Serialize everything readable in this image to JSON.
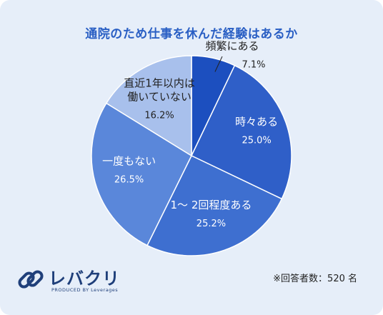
{
  "chart_data": {
    "type": "pie",
    "title": "通院のため仕事を休んだ経験はあるか",
    "slices": [
      {
        "label": "頻繁にある",
        "value": 7.1,
        "value_label": "7.1%",
        "color": "#1c4fbf",
        "label_color": "#222222"
      },
      {
        "label": "時々ある",
        "value": 25.0,
        "value_label": "25.0%",
        "color": "#2f5fc8",
        "label_color": "#ffffff"
      },
      {
        "label": "1～ 2回程度ある",
        "value": 25.2,
        "value_label": "25.2%",
        "color": "#3e6fd0",
        "label_color": "#ffffff"
      },
      {
        "label": "一度もない",
        "value": 26.5,
        "value_label": "26.5%",
        "color": "#5a87da",
        "label_color": "#ffffff"
      },
      {
        "label": "直近1年以内は\n働いていない",
        "value": 16.2,
        "value_label": "16.2%",
        "color": "#a8c0ec",
        "label_color": "#222222"
      }
    ]
  },
  "footnote": "※回答者数：520 名",
  "logo": {
    "name": "レバクリ",
    "tagline": "PRODUCED BY Leverages",
    "icon": "chain-link-icon",
    "color": "#1f3f7a"
  }
}
